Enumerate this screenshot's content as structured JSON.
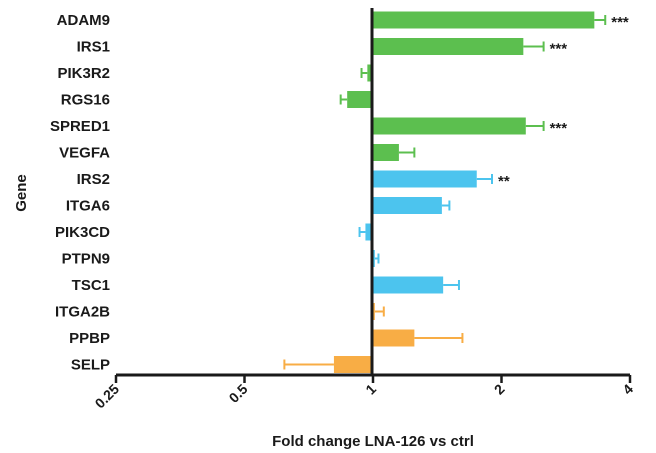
{
  "chart_data": {
    "type": "bar",
    "orientation": "horizontal",
    "xlabel": "Fold change LNA-126 vs ctrl",
    "ylabel": "Gene",
    "x_scale": "log2",
    "xlim": [
      0.25,
      4
    ],
    "xticks": [
      0.25,
      0.5,
      1,
      2,
      4
    ],
    "xtick_labels": [
      "0.25",
      "0.5",
      "1",
      "2",
      "4"
    ],
    "baseline": 1,
    "grid": false,
    "legend": "none",
    "colors": {
      "green": "#5cbf4f",
      "blue": "#4cc4ee",
      "orange": "#f8ad45"
    },
    "categories": [
      "ADAM9",
      "IRS1",
      "PIK3R2",
      "RGS16",
      "SPRED1",
      "VEGFA",
      "IRS2",
      "ITGA6",
      "PIK3CD",
      "PTPN9",
      "TSC1",
      "ITGA2B",
      "PPBP",
      "SELP"
    ],
    "values": [
      3.3,
      2.25,
      0.97,
      0.87,
      2.28,
      1.15,
      1.75,
      1.45,
      0.96,
      1.01,
      1.46,
      1.01,
      1.25,
      0.81
    ],
    "error": [
      0.2,
      0.26,
      0.03,
      0.03,
      0.23,
      0.1,
      0.15,
      0.06,
      0.03,
      0.02,
      0.13,
      0.05,
      0.37,
      0.19
    ],
    "bar_color": [
      "green",
      "green",
      "green",
      "green",
      "green",
      "green",
      "blue",
      "blue",
      "blue",
      "blue",
      "blue",
      "orange",
      "orange",
      "orange"
    ],
    "significance": [
      "***",
      "***",
      "",
      "",
      "***",
      "",
      "**",
      "",
      "",
      "",
      "",
      "",
      "",
      ""
    ]
  }
}
